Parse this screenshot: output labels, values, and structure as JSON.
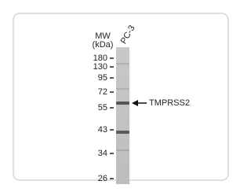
{
  "figure": {
    "mw_label": "MW",
    "mw_unit": "(kDa)",
    "lane_label": "PC-3",
    "markers": [
      "180",
      "130",
      "95",
      "72",
      "55",
      "43",
      "34",
      "26"
    ],
    "target_label": "TMPRSS2"
  }
}
